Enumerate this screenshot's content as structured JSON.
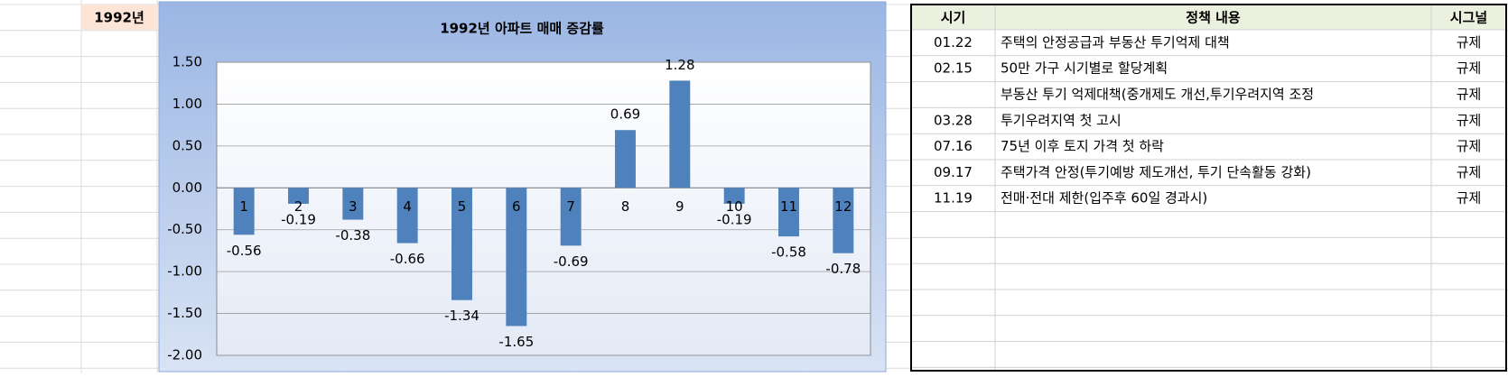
{
  "sheet_label": "1992년",
  "chart_data": {
    "type": "bar",
    "title": "1992년 아파트 매매 증감률",
    "categories": [
      "1",
      "2",
      "3",
      "4",
      "5",
      "6",
      "7",
      "8",
      "9",
      "10",
      "11",
      "12"
    ],
    "values": [
      -0.56,
      -0.19,
      -0.38,
      -0.66,
      -1.34,
      -1.65,
      -0.69,
      0.69,
      1.28,
      -0.19,
      -0.58,
      -0.78
    ],
    "color": "#4f81bd",
    "ylim": [
      -2,
      1.5
    ],
    "yticks": [
      {
        "value": -2,
        "label": "-2.00"
      },
      {
        "value": -1.5,
        "label": "-1.50"
      },
      {
        "value": -1,
        "label": "-1.00"
      },
      {
        "value": -0.5,
        "label": "-0.50"
      },
      {
        "value": 0,
        "label": "0.00"
      },
      {
        "value": 0.5,
        "label": "0.50"
      },
      {
        "value": 1,
        "label": "1.00"
      },
      {
        "value": 1.5,
        "label": "1.50"
      }
    ],
    "grid": true
  },
  "table": {
    "header": [
      "시기",
      "정책 내용",
      "시그널"
    ],
    "rows": [
      [
        "01.22",
        "주택의 안정공급과 부동산 투기억제 대책",
        "규제"
      ],
      [
        "02.15",
        "50만 가구 시기별로 할당계획",
        "규제"
      ],
      [
        null,
        "부동산 투기 억제대책(중개제도 개선,투기우려지역 조정",
        "규제"
      ],
      [
        "03.28",
        "투기우려지역 첫 고시",
        "규제"
      ],
      [
        "07.16",
        "75년 이후 토지 가격 첫 하락",
        "규제"
      ],
      [
        "09.17",
        "주택가격 안정(투기예방 제도개선, 투기 단속활동 강화)",
        "규제"
      ],
      [
        "11.19",
        "전매·전대 제한(입주후 60일 경과시)",
        "규제"
      ]
    ]
  }
}
